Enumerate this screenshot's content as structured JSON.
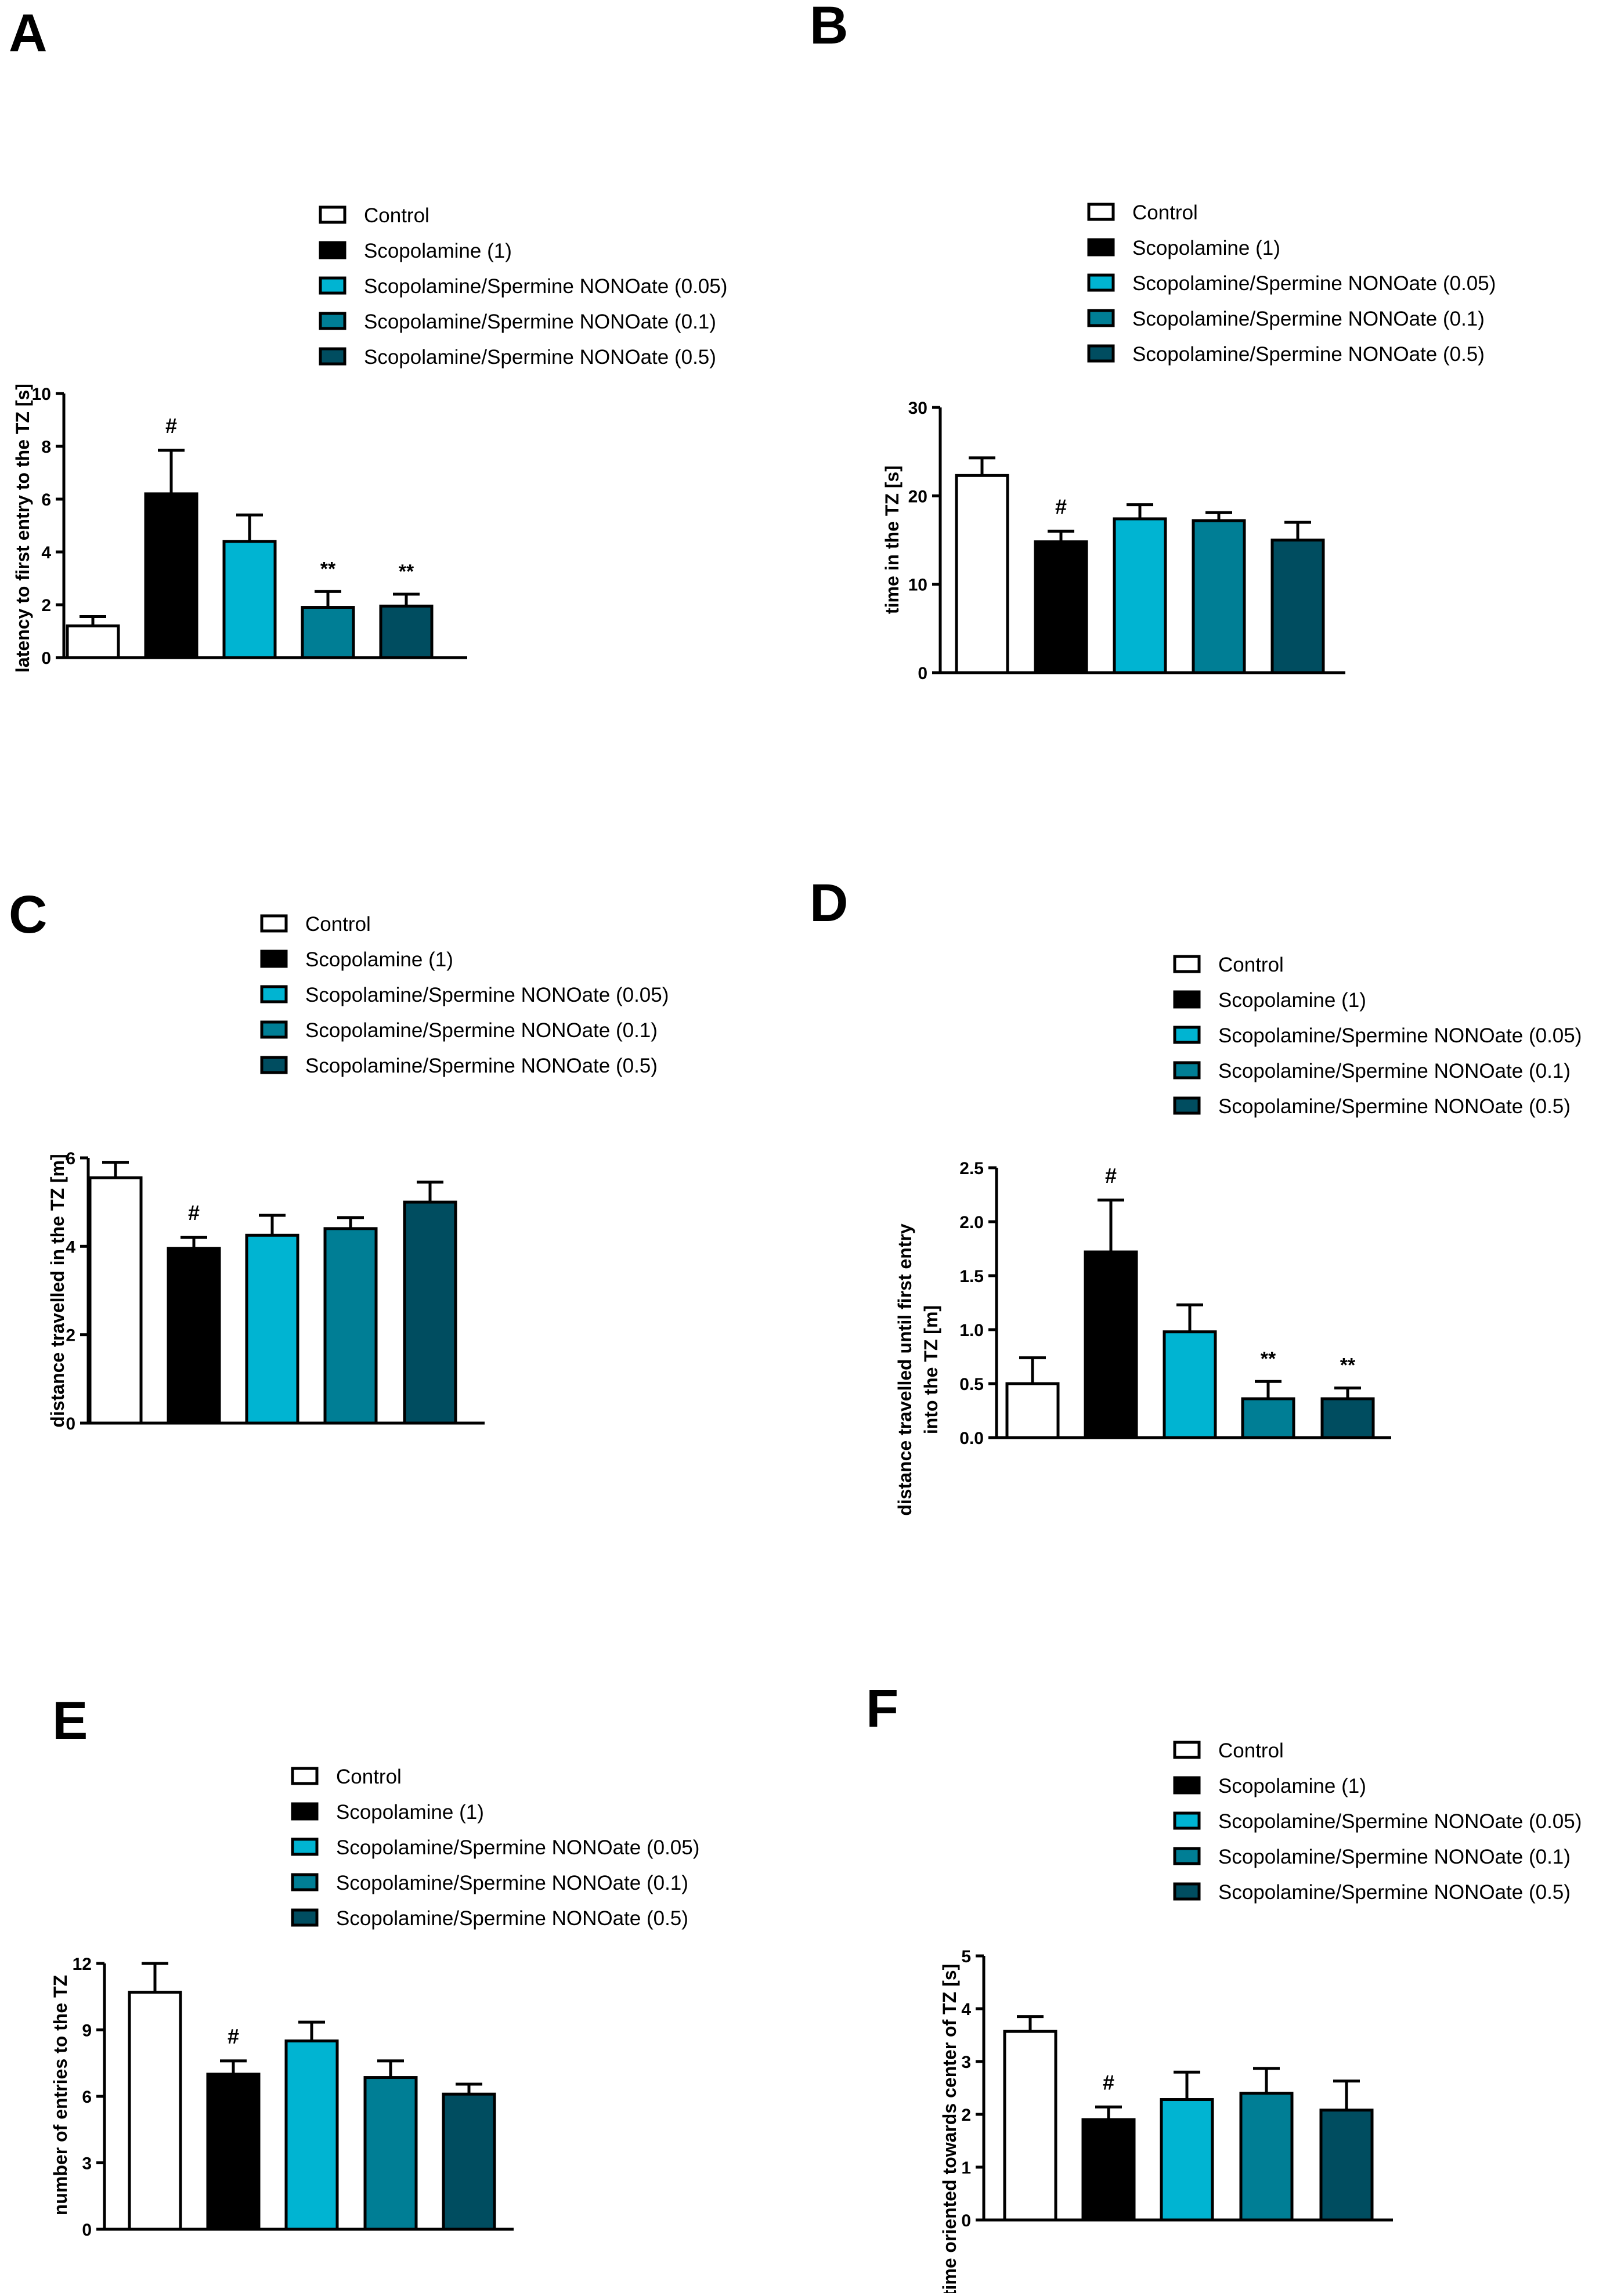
{
  "legend": [
    {
      "label": "Control",
      "color": "#ffffff"
    },
    {
      "label": "Scopolamine (1)",
      "color": "#000000"
    },
    {
      "label": "Scopolamine/Spermine NONOate (0.05)",
      "color": "#00b4d2"
    },
    {
      "label": "Scopolamine/Spermine NONOate (0.1)",
      "color": "#007e95"
    },
    {
      "label": "Scopolamine/Spermine NONOate (0.5)",
      "color": "#004d60"
    }
  ],
  "chart_data": [
    {
      "panel": "A",
      "type": "bar",
      "categories": [
        "Control",
        "Scopolamine (1)",
        "Scopolamine/Spermine NONOate (0.05)",
        "Scopolamine/Spermine NONOate (0.1)",
        "Scopolamine/Spermine NONOate (0.5)"
      ],
      "values": [
        1.2,
        6.2,
        4.4,
        1.9,
        1.95
      ],
      "errors": [
        0.35,
        1.65,
        1.0,
        0.6,
        0.45
      ],
      "marks": [
        "",
        "#",
        "",
        "**",
        "**"
      ],
      "ylabel": "latency to first entry to the TZ [s]",
      "ylim": [
        0,
        10
      ],
      "yticks": [
        "0",
        "2",
        "4",
        "6",
        "8",
        "10"
      ]
    },
    {
      "panel": "B",
      "type": "bar",
      "categories": [
        "Control",
        "Scopolamine (1)",
        "Scopolamine/Spermine NONOate (0.05)",
        "Scopolamine/Spermine NONOate (0.1)",
        "Scopolamine/Spermine NONOate (0.5)"
      ],
      "values": [
        22.3,
        14.8,
        17.4,
        17.2,
        15.0
      ],
      "errors": [
        2.0,
        1.2,
        1.6,
        0.9,
        2.0
      ],
      "marks": [
        "",
        "#",
        "",
        "",
        ""
      ],
      "ylabel": "time in the TZ [s]",
      "ylim": [
        0,
        30
      ],
      "yticks": [
        "0",
        "10",
        "20",
        "30"
      ]
    },
    {
      "panel": "C",
      "type": "bar",
      "categories": [
        "Control",
        "Scopolamine (1)",
        "Scopolamine/Spermine NONOate (0.05)",
        "Scopolamine/Spermine NONOate (0.1)",
        "Scopolamine/Spermine NONOate (0.5)"
      ],
      "values": [
        5.55,
        3.95,
        4.25,
        4.4,
        5.0
      ],
      "errors": [
        0.35,
        0.25,
        0.45,
        0.25,
        0.45
      ],
      "marks": [
        "",
        "#",
        "",
        "",
        ""
      ],
      "ylabel": "distance travelled in the TZ [m]",
      "ylim": [
        0,
        6
      ],
      "yticks": [
        "0",
        "2",
        "4",
        "6"
      ]
    },
    {
      "panel": "D",
      "type": "bar",
      "categories": [
        "Control",
        "Scopolamine (1)",
        "Scopolamine/Spermine NONOate (0.05)",
        "Scopolamine/Spermine NONOate (0.1)",
        "Scopolamine/Spermine NONOate (0.5)"
      ],
      "values": [
        0.5,
        1.72,
        0.98,
        0.36,
        0.36
      ],
      "errors": [
        0.24,
        0.48,
        0.25,
        0.16,
        0.1
      ],
      "marks": [
        "",
        "#",
        "",
        "**",
        "**"
      ],
      "ylabel": "distance travelled until first entry",
      "ylabel2": "into the TZ [m]",
      "ylim": [
        0,
        2.5
      ],
      "yticks": [
        "0.0",
        "0.5",
        "1.0",
        "1.5",
        "2.0",
        "2.5"
      ]
    },
    {
      "panel": "E",
      "type": "bar",
      "categories": [
        "Control",
        "Scopolamine (1)",
        "Scopolamine/Spermine NONOate (0.05)",
        "Scopolamine/Spermine NONOate (0.1)",
        "Scopolamine/Spermine NONOate (0.5)"
      ],
      "values": [
        10.7,
        7.0,
        8.5,
        6.85,
        6.1
      ],
      "errors": [
        1.3,
        0.6,
        0.85,
        0.75,
        0.45
      ],
      "marks": [
        "",
        "#",
        "",
        "",
        ""
      ],
      "ylabel": "number of entries to the TZ",
      "ylim": [
        0,
        12
      ],
      "yticks": [
        "0",
        "3",
        "6",
        "9",
        "12"
      ]
    },
    {
      "panel": "F",
      "type": "bar",
      "categories": [
        "Control",
        "Scopolamine (1)",
        "Scopolamine/Spermine NONOate (0.05)",
        "Scopolamine/Spermine NONOate (0.1)",
        "Scopolamine/Spermine NONOate (0.5)"
      ],
      "values": [
        3.57,
        1.9,
        2.28,
        2.4,
        2.08
      ],
      "errors": [
        0.28,
        0.24,
        0.52,
        0.47,
        0.55
      ],
      "marks": [
        "",
        "#",
        "",
        "",
        ""
      ],
      "ylabel": "time oriented towards center of TZ [s]",
      "ylim": [
        0,
        5
      ],
      "yticks": [
        "0",
        "1",
        "2",
        "3",
        "4",
        "5"
      ]
    }
  ]
}
